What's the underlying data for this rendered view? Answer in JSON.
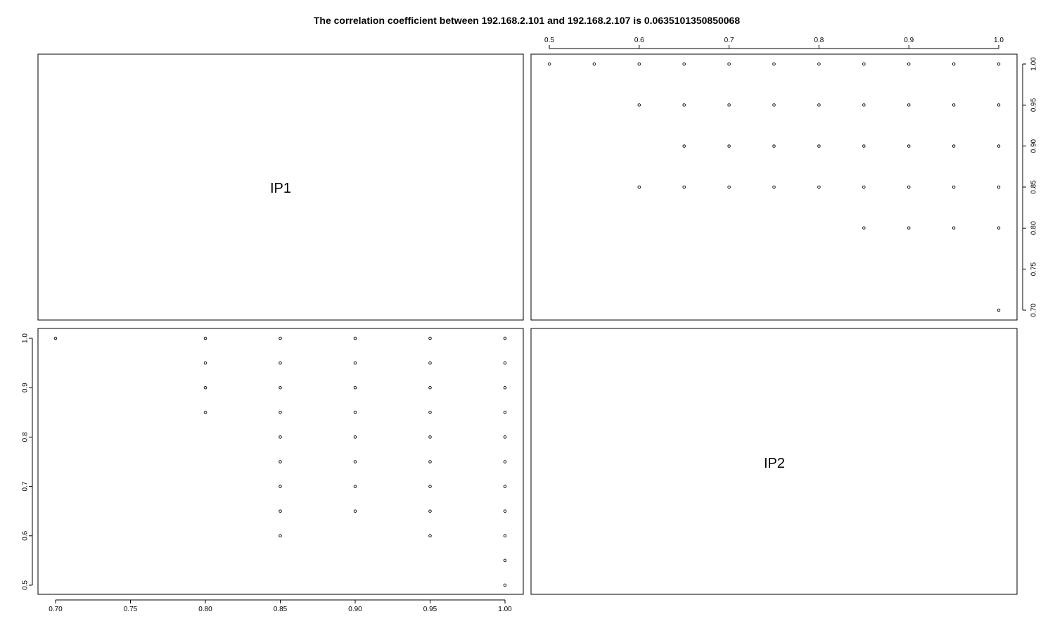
{
  "chart_data": {
    "type": "scatter",
    "title": "The correlation coefficient between 192.168.2.101 and 192.168.2.107 is 0.0635101350850068",
    "variables": [
      "IP1",
      "IP2"
    ],
    "panels": [
      {
        "id": "ip2-vs-ip1",
        "row": 1,
        "col": 2,
        "x_variable": "IP2",
        "y_variable": "IP1",
        "xlim": [
          0.5,
          1.0
        ],
        "ylim": [
          0.7,
          1.0
        ],
        "x_ticks": [
          "0.5",
          "0.6",
          "0.7",
          "0.8",
          "0.9",
          "1.0"
        ],
        "x_tick_values": [
          0.5,
          0.6,
          0.7,
          0.8,
          0.9,
          1.0
        ],
        "y_ticks": [
          "0.70",
          "0.75",
          "0.80",
          "0.85",
          "0.90",
          "0.95",
          "1.00"
        ],
        "y_tick_values": [
          0.7,
          0.75,
          0.8,
          0.85,
          0.9,
          0.95,
          1.0
        ],
        "x_axis_side": "top",
        "y_axis_side": "right",
        "points": [
          [
            0.5,
            1.0
          ],
          [
            0.55,
            1.0
          ],
          [
            0.6,
            1.0
          ],
          [
            0.65,
            1.0
          ],
          [
            0.7,
            1.0
          ],
          [
            0.75,
            1.0
          ],
          [
            0.8,
            1.0
          ],
          [
            0.85,
            1.0
          ],
          [
            0.9,
            1.0
          ],
          [
            0.95,
            1.0
          ],
          [
            1.0,
            1.0
          ],
          [
            0.6,
            0.95
          ],
          [
            0.65,
            0.95
          ],
          [
            0.7,
            0.95
          ],
          [
            0.75,
            0.95
          ],
          [
            0.8,
            0.95
          ],
          [
            0.85,
            0.95
          ],
          [
            0.9,
            0.95
          ],
          [
            0.95,
            0.95
          ],
          [
            1.0,
            0.95
          ],
          [
            0.65,
            0.9
          ],
          [
            0.7,
            0.9
          ],
          [
            0.75,
            0.9
          ],
          [
            0.8,
            0.9
          ],
          [
            0.85,
            0.9
          ],
          [
            0.9,
            0.9
          ],
          [
            0.95,
            0.9
          ],
          [
            1.0,
            0.9
          ],
          [
            0.6,
            0.85
          ],
          [
            0.65,
            0.85
          ],
          [
            0.7,
            0.85
          ],
          [
            0.75,
            0.85
          ],
          [
            0.8,
            0.85
          ],
          [
            0.85,
            0.85
          ],
          [
            0.9,
            0.85
          ],
          [
            0.95,
            0.85
          ],
          [
            1.0,
            0.85
          ],
          [
            0.85,
            0.8
          ],
          [
            0.9,
            0.8
          ],
          [
            0.95,
            0.8
          ],
          [
            1.0,
            0.8
          ],
          [
            1.0,
            0.7
          ]
        ]
      },
      {
        "id": "ip1-vs-ip2",
        "row": 2,
        "col": 1,
        "x_variable": "IP1",
        "y_variable": "IP2",
        "xlim": [
          0.7,
          1.0
        ],
        "ylim": [
          0.5,
          1.0
        ],
        "x_ticks": [
          "0.70",
          "0.75",
          "0.80",
          "0.85",
          "0.90",
          "0.95",
          "1.00"
        ],
        "x_tick_values": [
          0.7,
          0.75,
          0.8,
          0.85,
          0.9,
          0.95,
          1.0
        ],
        "y_ticks": [
          "0.5",
          "0.6",
          "0.7",
          "0.8",
          "0.9",
          "1.0"
        ],
        "y_tick_values": [
          0.5,
          0.6,
          0.7,
          0.8,
          0.9,
          1.0
        ],
        "x_axis_side": "bottom",
        "y_axis_side": "left",
        "points": [
          [
            0.7,
            1.0
          ],
          [
            0.8,
            1.0
          ],
          [
            0.8,
            0.95
          ],
          [
            0.8,
            0.9
          ],
          [
            0.8,
            0.85
          ],
          [
            0.85,
            1.0
          ],
          [
            0.85,
            0.95
          ],
          [
            0.85,
            0.9
          ],
          [
            0.85,
            0.85
          ],
          [
            0.85,
            0.8
          ],
          [
            0.85,
            0.75
          ],
          [
            0.85,
            0.7
          ],
          [
            0.85,
            0.65
          ],
          [
            0.85,
            0.6
          ],
          [
            0.9,
            1.0
          ],
          [
            0.9,
            0.95
          ],
          [
            0.9,
            0.9
          ],
          [
            0.9,
            0.85
          ],
          [
            0.9,
            0.8
          ],
          [
            0.9,
            0.75
          ],
          [
            0.9,
            0.7
          ],
          [
            0.9,
            0.65
          ],
          [
            0.95,
            1.0
          ],
          [
            0.95,
            0.95
          ],
          [
            0.95,
            0.9
          ],
          [
            0.95,
            0.85
          ],
          [
            0.95,
            0.8
          ],
          [
            0.95,
            0.75
          ],
          [
            0.95,
            0.7
          ],
          [
            0.95,
            0.65
          ],
          [
            0.95,
            0.6
          ],
          [
            1.0,
            1.0
          ],
          [
            1.0,
            0.95
          ],
          [
            1.0,
            0.9
          ],
          [
            1.0,
            0.85
          ],
          [
            1.0,
            0.8
          ],
          [
            1.0,
            0.75
          ],
          [
            1.0,
            0.7
          ],
          [
            1.0,
            0.65
          ],
          [
            1.0,
            0.6
          ],
          [
            1.0,
            0.55
          ],
          [
            1.0,
            0.5
          ]
        ]
      }
    ],
    "grid": false,
    "legend": "none",
    "point_style": "open-circle",
    "colors": {
      "points": "#000000",
      "frame": "#000000",
      "background": "#ffffff"
    }
  }
}
